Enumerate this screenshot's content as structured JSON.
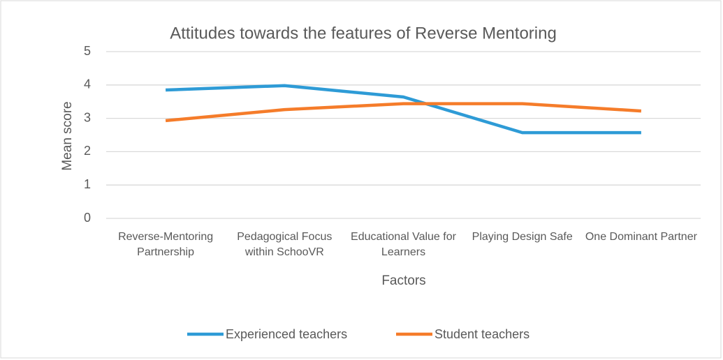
{
  "chart_data": {
    "type": "line",
    "title": "Attitudes towards the features of Reverse Mentoring",
    "x_label": "Factors",
    "y_label": "Mean score",
    "categories": [
      "Reverse-Mentoring Partnership",
      "Pedagogical Focus within SchooVR",
      "Educational Value for Learners",
      "Playing Design Safe",
      "One Dominant Partner"
    ],
    "series": [
      {
        "name": "Experienced teachers",
        "color": "#2e9bd6",
        "values": [
          3.85,
          3.98,
          3.64,
          2.57,
          2.57
        ]
      },
      {
        "name": "Student teachers",
        "color": "#f57c2a",
        "values": [
          2.93,
          3.26,
          3.44,
          3.44,
          3.22
        ]
      }
    ],
    "ylim": [
      0,
      5
    ],
    "yticks": [
      0,
      1,
      2,
      3,
      4,
      5
    ],
    "grid": true,
    "legend": "bottom"
  }
}
